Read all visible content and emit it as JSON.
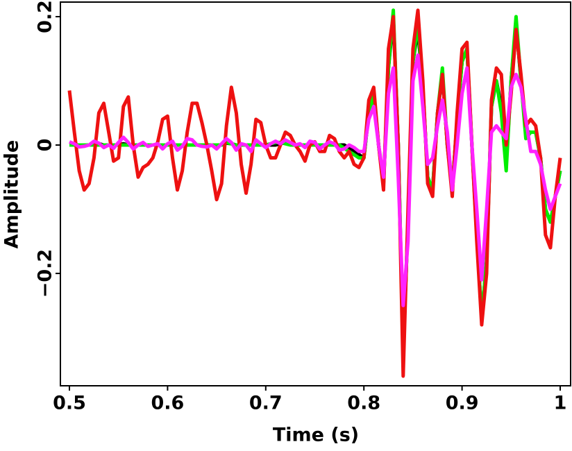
{
  "chart_data": {
    "type": "line",
    "xlabel": "Time (s)",
    "ylabel": "Amplitude",
    "x": [
      0.5,
      0.505,
      0.51,
      0.515,
      0.52,
      0.525,
      0.53,
      0.535,
      0.54,
      0.545,
      0.55,
      0.555,
      0.56,
      0.565,
      0.57,
      0.575,
      0.58,
      0.585,
      0.59,
      0.595,
      0.6,
      0.605,
      0.61,
      0.615,
      0.62,
      0.625,
      0.63,
      0.635,
      0.64,
      0.645,
      0.65,
      0.655,
      0.66,
      0.665,
      0.67,
      0.675,
      0.68,
      0.685,
      0.69,
      0.695,
      0.7,
      0.705,
      0.71,
      0.715,
      0.72,
      0.725,
      0.73,
      0.735,
      0.74,
      0.745,
      0.75,
      0.755,
      0.76,
      0.765,
      0.77,
      0.775,
      0.78,
      0.785,
      0.79,
      0.795,
      0.8,
      0.805,
      0.81,
      0.815,
      0.82,
      0.825,
      0.83,
      0.835,
      0.84,
      0.845,
      0.85,
      0.855,
      0.86,
      0.865,
      0.87,
      0.875,
      0.88,
      0.885,
      0.89,
      0.895,
      0.9,
      0.905,
      0.91,
      0.915,
      0.92,
      0.925,
      0.93,
      0.935,
      0.94,
      0.945,
      0.95,
      0.955,
      0.96,
      0.965,
      0.97,
      0.975,
      0.98,
      0.985,
      0.99,
      0.995,
      1
    ],
    "series": [
      {
        "color": "#000000",
        "values": [
          0,
          0,
          0,
          0,
          0,
          0,
          0.002,
          0,
          0,
          0,
          0,
          0.002,
          0,
          0,
          0,
          0,
          0,
          0,
          0,
          0,
          0,
          0,
          0,
          0,
          0,
          0,
          0,
          0,
          0,
          0,
          0,
          0,
          0.003,
          0.002,
          0,
          0,
          0,
          0,
          0,
          0,
          0,
          0,
          0,
          0.002,
          0.004,
          0.002,
          0,
          0,
          0,
          0,
          0,
          0,
          0,
          0,
          0,
          0,
          0,
          -0.005,
          -0.01,
          -0.015,
          -0.02,
          0.05,
          0.08,
          0,
          -0.06,
          0.12,
          0.2,
          0,
          -0.32,
          -0.12,
          0.13,
          0.18,
          0.09,
          -0.05,
          -0.07,
          0.05,
          0.11,
          0,
          -0.07,
          0.04,
          0.13,
          0.15,
          0,
          -0.14,
          -0.27,
          -0.18,
          0.06,
          0.1,
          0.06,
          -0.03,
          0.1,
          0.19,
          0.1,
          0.02,
          0.02,
          0.02,
          -0.02,
          -0.1,
          -0.12,
          -0.08,
          -0.04
        ]
      },
      {
        "color": "#00ee00",
        "values": [
          0,
          0,
          0,
          0,
          0,
          0,
          0,
          0,
          0,
          0,
          0,
          0,
          0,
          0,
          0,
          0,
          0,
          0,
          0,
          0,
          0,
          0,
          0,
          0,
          0,
          0,
          0,
          0,
          0,
          0,
          0,
          0,
          0.004,
          0.002,
          0,
          0,
          0,
          0,
          0,
          0,
          0,
          0.002,
          0.004,
          0.004,
          0.002,
          0,
          0,
          0,
          0,
          0,
          0,
          0,
          0,
          0,
          0,
          0,
          -0.005,
          -0.01,
          -0.015,
          -0.02,
          -0.02,
          0.05,
          0.08,
          0,
          -0.06,
          0.12,
          0.21,
          0,
          -0.32,
          -0.12,
          0.13,
          0.19,
          0.09,
          -0.05,
          -0.07,
          0.05,
          0.12,
          0,
          -0.07,
          0.04,
          0.13,
          0.15,
          0,
          -0.14,
          -0.27,
          -0.18,
          0.06,
          0.1,
          0.05,
          -0.04,
          0.1,
          0.2,
          0.1,
          0.01,
          0.02,
          0.02,
          -0.02,
          -0.1,
          -0.12,
          -0.08,
          -0.04
        ]
      },
      {
        "color": "#ee1111",
        "values": [
          0.085,
          0.02,
          -0.04,
          -0.07,
          -0.06,
          -0.02,
          0.05,
          0.065,
          0.02,
          -0.025,
          -0.02,
          0.06,
          0.075,
          0,
          -0.05,
          -0.035,
          -0.03,
          -0.02,
          0.005,
          0.04,
          0.045,
          -0.02,
          -0.07,
          -0.04,
          0.02,
          0.065,
          0.065,
          0.035,
          0,
          -0.04,
          -0.085,
          -0.06,
          0.03,
          0.09,
          0.05,
          -0.03,
          -0.075,
          -0.03,
          0.04,
          0.035,
          0,
          -0.02,
          -0.02,
          0,
          0.02,
          0.015,
          0,
          -0.01,
          -0.025,
          0,
          0.005,
          -0.01,
          -0.01,
          0.015,
          0.01,
          -0.01,
          -0.02,
          -0.01,
          -0.03,
          -0.035,
          -0.02,
          0.07,
          0.09,
          0,
          -0.07,
          0.15,
          0.2,
          0,
          -0.36,
          -0.1,
          0.15,
          0.21,
          0.1,
          -0.06,
          -0.08,
          0.05,
          0.11,
          0,
          -0.08,
          0.05,
          0.15,
          0.16,
          0,
          -0.15,
          -0.28,
          -0.2,
          0.07,
          0.12,
          0.11,
          0,
          0.08,
          0.18,
          0.11,
          0.03,
          0.04,
          0.03,
          -0.02,
          -0.14,
          -0.16,
          -0.08,
          -0.02
        ]
      },
      {
        "color": "#ff22ff",
        "values": [
          0.005,
          0.002,
          -0.003,
          -0.002,
          0,
          0.006,
          0.003,
          -0.004,
          0,
          -0.005,
          0.004,
          0.012,
          0.004,
          -0.006,
          0,
          0.004,
          -0.002,
          0,
          0.002,
          -0.006,
          0.002,
          0.006,
          -0.008,
          -0.002,
          0.01,
          0.008,
          0,
          -0.002,
          -0.003,
          0,
          -0.006,
          0.002,
          0.01,
          0.004,
          -0.008,
          0.002,
          0,
          -0.01,
          0.008,
          0.002,
          -0.004,
          0.002,
          0.006,
          0.002,
          0.008,
          0.004,
          0,
          0.002,
          -0.004,
          0.006,
          0.004,
          -0.006,
          0,
          0.005,
          0.002,
          -0.008,
          -0.006,
          0,
          -0.004,
          -0.01,
          -0.01,
          0.04,
          0.06,
          0,
          -0.05,
          0.08,
          0.12,
          -0.05,
          -0.25,
          -0.15,
          0.1,
          0.14,
          0.06,
          -0.03,
          -0.02,
          0.03,
          0.07,
          0.02,
          -0.07,
          0,
          0.08,
          0.12,
          0,
          -0.1,
          -0.21,
          -0.1,
          0.02,
          0.03,
          0.02,
          0.01,
          0.09,
          0.11,
          0.09,
          0.04,
          -0.01,
          -0.01,
          -0.03,
          -0.07,
          -0.1,
          -0.08,
          -0.06
        ]
      }
    ],
    "xlim": [
      0.4908,
      1.0106
    ],
    "xticks": [
      0.5,
      0.6,
      0.7,
      0.8,
      0.9,
      1
    ],
    "ylim": [
      -0.375,
      0.2227
    ],
    "yticks": [
      {
        "value": -0.2,
        "label": "−0.2"
      },
      0,
      0.2
    ]
  }
}
